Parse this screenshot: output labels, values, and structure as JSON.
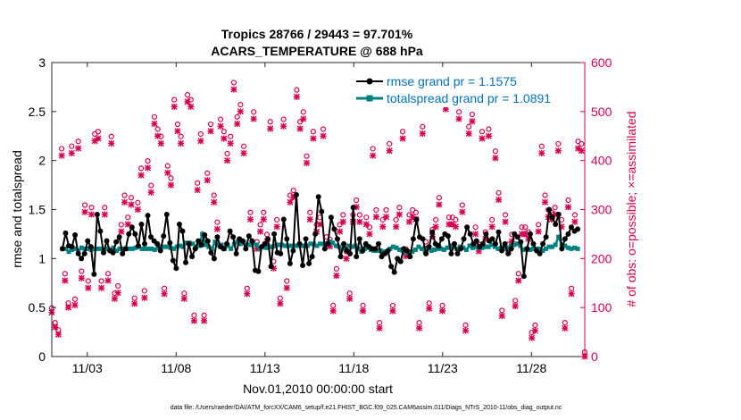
{
  "chart_data": {
    "type": "line",
    "title_line1": "Tropics 28766 / 29443 = 97.701%",
    "title_line2": "ACARS_TEMPERATURE @ 688 hPa",
    "xlabel": "Nov.01,2010 00:00:00 start",
    "ylabel_left": "rmse and totalspread",
    "ylabel_right": "# of obs: o=possible; ×=assimilated",
    "footer": "data file: /Users/raeder/DAI/ATM_forcXX/CAM6_setup/f.e21.FHIST_BGC.f09_025.CAM6assim.011/Diags_NTrS_2010-11/obs_diag_output.nc",
    "x_tick_labels": [
      "11/03",
      "11/08",
      "11/13",
      "11/18",
      "11/23",
      "11/28"
    ],
    "x_tick_values": [
      2,
      7,
      12,
      17,
      22,
      27
    ],
    "xlim": [
      0,
      30
    ],
    "ylim_left": [
      0,
      3
    ],
    "ylim_right": [
      0,
      600
    ],
    "y_left_ticks": [
      0,
      0.5,
      1,
      1.5,
      2,
      2.5,
      3
    ],
    "y_left_tick_labels": [
      "0",
      "0.5",
      "1",
      "1.5",
      "2",
      "2.5",
      "3"
    ],
    "y_right_ticks": [
      0,
      100,
      200,
      300,
      400,
      500,
      600
    ],
    "y_right_tick_labels": [
      "0",
      "100",
      "200",
      "300",
      "400",
      "500",
      "600"
    ],
    "legend": [
      {
        "label": "rmse grand pr = 1.1575",
        "color": "#000000"
      },
      {
        "label": "totalspread grand pr = 1.0891",
        "color": "#008080"
      }
    ],
    "legend_text_color": "#0072bd",
    "right_axis_color": "#d6004f",
    "rmse": [
      1.1,
      1.26,
      1.13,
      1.12,
      1.24,
      1.05,
      1.0,
      1.05,
      1.18,
      1.12,
      0.84,
      1.45,
      1.28,
      1.06,
      1.18,
      1.08,
      1.06,
      1.17,
      1.22,
      1.05,
      1.1,
      1.25,
      1.32,
      1.25,
      1.13,
      1.35,
      1.15,
      1.44,
      1.22,
      1.18,
      1.15,
      1.08,
      1.23,
      1.45,
      1.16,
      0.98,
      0.9,
      1.35,
      1.28,
      0.96,
      1.15,
      1.02,
      1.1,
      1.18,
      1.14,
      1.24,
      1.18,
      1.06,
      1.0,
      1.22,
      1.12,
      1.1,
      1.15,
      1.28,
      1.22,
      1.05,
      1.2,
      1.18,
      1.1,
      1.23,
      1.18,
      0.88,
      0.87,
      1.12,
      1.15,
      1.2,
      0.92,
      1.25,
      1.06,
      1.05,
      1.4,
      1.2,
      0.95,
      1.08,
      1.65,
      1.15,
      0.93,
      1.2,
      0.95,
      1.02,
      1.25,
      1.63,
      1.48,
      1.1,
      1.15,
      1.42,
      1.3,
      1.2,
      1.02,
      1.15,
      1.08,
      1.05,
      1.52,
      1.02,
      1.2,
      1.08,
      1.15,
      1.12,
      1.1,
      1.1,
      1.15,
      1.02,
      1.05,
      1.08,
      0.92,
      0.86,
      1.0,
      0.97,
      1.1,
      1.08,
      1.02,
      1.2,
      1.4,
      1.22,
      1.2,
      1.05,
      1.12,
      1.27,
      1.15,
      1.13,
      1.2,
      1.25,
      1.23,
      1.05,
      1.15,
      1.05,
      1.1,
      1.2,
      1.32,
      1.25,
      1.15,
      1.18,
      1.12,
      1.15,
      1.25,
      1.18,
      1.2,
      1.15,
      1.27,
      1.08,
      1.15,
      1.05,
      1.1,
      1.25,
      1.22,
      1.17,
      0.82,
      1.1,
      1.25,
      1.15,
      1.08,
      1.05,
      1.15,
      1.22,
      1.5,
      1.42,
      1.35,
      1.45,
      1.1,
      1.2,
      1.25,
      1.32,
      1.28,
      1.3
    ],
    "totalspread": [
      1.1,
      1.1,
      1.07,
      1.09,
      1.1,
      1.08,
      1.11,
      1.1,
      1.1,
      1.09,
      1.1,
      1.1,
      1.1,
      1.08,
      1.1,
      1.09,
      1.11,
      1.08,
      1.1,
      1.1,
      1.1,
      1.1,
      1.1,
      1.11,
      1.12,
      1.1,
      1.1,
      1.1,
      1.1,
      1.09,
      1.11,
      1.12,
      1.12,
      1.12,
      1.11,
      1.1,
      1.12,
      1.13,
      1.12,
      1.16,
      1.16,
      1.15,
      1.12,
      1.13,
      1.25,
      1.14,
      1.12,
      1.1,
      1.17,
      1.14,
      1.14,
      1.1,
      1.13,
      1.1,
      1.15,
      1.17,
      1.15,
      1.17,
      1.14,
      1.14,
      1.16,
      1.14,
      1.1,
      1.12,
      1.11,
      1.12,
      1.12,
      1.13,
      1.14,
      1.14,
      1.13,
      1.13,
      1.13,
      1.13,
      1.13,
      1.13,
      1.13,
      1.13,
      1.15,
      1.15,
      1.13,
      1.15,
      1.15,
      1.15,
      1.17,
      1.16,
      1.13,
      1.12,
      1.1,
      1.1,
      1.13,
      1.12,
      1.13,
      1.1,
      1.07,
      1.1,
      1.11,
      1.09,
      1.08,
      1.08,
      1.08,
      1.07,
      1.07,
      1.1,
      1.12,
      1.11,
      1.09,
      1.08,
      1.06,
      1.07,
      1.07,
      1.09,
      1.12,
      1.1,
      1.08,
      1.11,
      1.08,
      1.09,
      1.1,
      1.1,
      1.09,
      1.11,
      1.13,
      1.12,
      1.1,
      1.12,
      1.11,
      1.09,
      1.13,
      1.11,
      1.12,
      1.11,
      1.11,
      1.12,
      1.12,
      1.14,
      1.12,
      1.1,
      1.11,
      1.1,
      1.11,
      1.13,
      1.14,
      1.15,
      1.13,
      1.09,
      1.1,
      1.09,
      1.1,
      1.1,
      1.1,
      1.08,
      1.1,
      1.12,
      1.12,
      1.14,
      1.22,
      1.14,
      1.13,
      1.11,
      1.1,
      1.11,
      1.1
    ],
    "obs_possible": [
      90,
      60,
      45,
      415,
      160,
      100,
      420,
      108,
      430,
      165,
      300,
      145,
      295,
      445,
      450,
      145,
      295,
      160,
      440,
      120,
      135,
      260,
      320,
      275,
      315,
      110,
      305,
      375,
      125,
      390,
      340,
      480,
      455,
      440,
      130,
      380,
      355,
      515,
      465,
      440,
      120,
      525,
      515,
      75,
      345,
      445,
      75,
      365,
      465,
      320,
      265,
      475,
      450,
      405,
      440,
      550,
      480,
      505,
      420,
      130,
      285,
      490,
      225,
      260,
      285,
      240,
      470,
      185,
      270,
      110,
      475,
      145,
      320,
      330,
      535,
      470,
      490,
      400,
      285,
      450,
      260,
      275,
      455,
      235,
      230,
      95,
      170,
      260,
      280,
      205,
      120,
      280,
      310,
      280,
      95,
      275,
      255,
      415,
      290,
      60,
      270,
      290,
      425,
      95,
      270,
      295,
      450,
      210,
      280,
      290,
      285,
      60,
      460,
      225,
      100,
      250,
      270,
      315,
      95,
      510,
      275,
      275,
      270,
      490,
      300,
      55,
      460,
      485,
      255,
      220,
      450,
      245,
      455,
      270,
      410,
      325,
      85,
      280,
      220,
      240,
      105,
      160,
      255,
      255,
      245,
      40,
      55,
      260,
      420,
      320,
      290,
      285,
      295,
      425,
      270,
      60,
      310,
      130,
      280,
      430,
      425,
      0
    ],
    "obs_assimilated": [
      90,
      60,
      45,
      410,
      155,
      100,
      415,
      105,
      425,
      160,
      295,
      140,
      290,
      440,
      445,
      140,
      290,
      155,
      435,
      118,
      130,
      255,
      315,
      270,
      310,
      108,
      300,
      370,
      120,
      385,
      335,
      475,
      450,
      435,
      128,
      375,
      350,
      510,
      460,
      435,
      118,
      520,
      510,
      73,
      340,
      440,
      73,
      360,
      460,
      315,
      260,
      470,
      445,
      400,
      435,
      545,
      475,
      500,
      415,
      128,
      280,
      485,
      220,
      255,
      280,
      235,
      465,
      180,
      265,
      108,
      470,
      140,
      315,
      325,
      530,
      465,
      485,
      395,
      280,
      445,
      255,
      270,
      450,
      230,
      225,
      93,
      165,
      255,
      275,
      200,
      118,
      275,
      305,
      275,
      93,
      270,
      250,
      410,
      285,
      58,
      265,
      285,
      420,
      93,
      265,
      290,
      445,
      205,
      275,
      285,
      280,
      58,
      455,
      220,
      98,
      245,
      265,
      310,
      93,
      505,
      270,
      270,
      265,
      485,
      295,
      53,
      455,
      480,
      250,
      215,
      445,
      240,
      450,
      265,
      405,
      320,
      83,
      275,
      215,
      235,
      103,
      155,
      250,
      250,
      240,
      38,
      53,
      255,
      415,
      315,
      285,
      280,
      290,
      420,
      265,
      58,
      305,
      128,
      275,
      425,
      420,
      0
    ]
  }
}
